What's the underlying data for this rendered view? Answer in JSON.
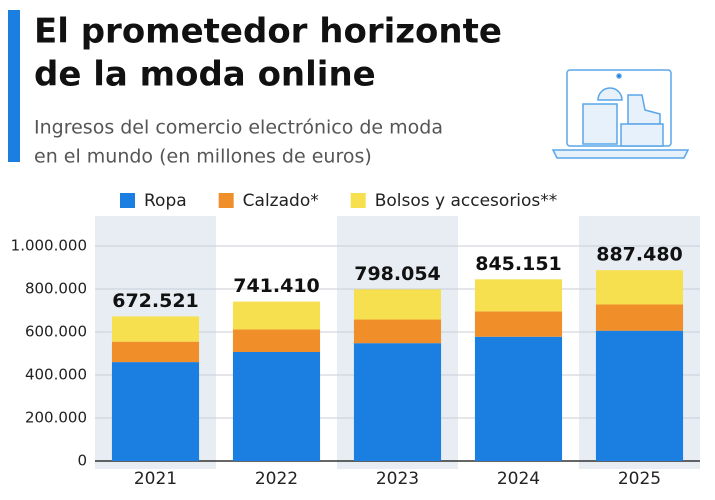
{
  "chart_data": {
    "type": "stacked-bar",
    "title_lines": [
      "El prometedor horizonte",
      "de la moda online"
    ],
    "subtitle_lines": [
      "Ingresos del comercio electrónico de moda",
      "en el mundo (en millones de euros)"
    ],
    "categories": [
      "2021",
      "2022",
      "2023",
      "2024",
      "2025"
    ],
    "series": [
      {
        "name": "Ropa",
        "color": "#1a7fe0",
        "values": [
          460000,
          507000,
          548000,
          578000,
          606000
        ]
      },
      {
        "name": "Calzado*",
        "color": "#f08f2a",
        "values": [
          95000,
          105000,
          110000,
          118000,
          122000
        ]
      },
      {
        "name": "Bolsos y accesorios**",
        "color": "#f7e04f",
        "values": [
          117521,
          129410,
          140054,
          149151,
          159480
        ]
      }
    ],
    "totals": {
      "values": [
        672521,
        741410,
        798054,
        845151,
        887480
      ],
      "value_labels": [
        "672.521",
        "741.410",
        "798.054",
        "845.151",
        "887.480"
      ]
    },
    "ylim": [
      0,
      1000000
    ],
    "yticks": [
      0,
      {
        "value": 200000,
        "label": "200.000"
      },
      {
        "value": 400000,
        "label": "400.000"
      },
      {
        "value": 600000,
        "label": "600.000"
      },
      {
        "value": 800000,
        "label": "800.000"
      },
      {
        "value": 1000000,
        "label": "1.000.000"
      }
    ],
    "grid": true
  }
}
